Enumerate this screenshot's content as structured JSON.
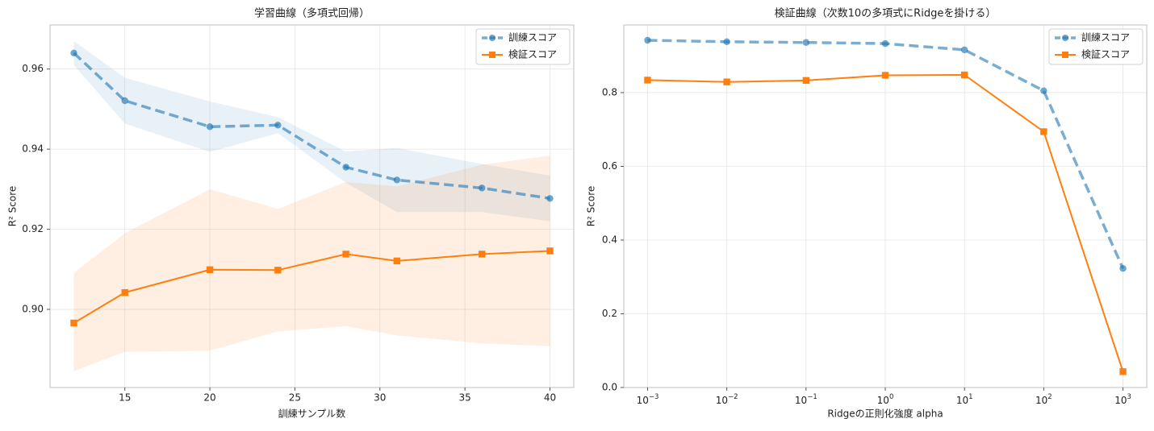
{
  "chart_data": [
    {
      "type": "line",
      "title": "学習曲線（多項式回帰）",
      "xlabel": "訓練サンプル数",
      "ylabel": "R² Score",
      "xlim": [
        10.6,
        41.4
      ],
      "ylim": [
        0.8805,
        0.971
      ],
      "xticks": [
        15,
        20,
        25,
        30,
        35,
        40
      ],
      "xtick_labels": [
        "15",
        "20",
        "25",
        "30",
        "35",
        "40"
      ],
      "yticks": [
        0.9,
        0.92,
        0.94,
        0.96
      ],
      "ytick_labels": [
        "0.90",
        "0.92",
        "0.94",
        "0.96"
      ],
      "grid": true,
      "legend_position": "top-right",
      "x": [
        12,
        15,
        20,
        24,
        28,
        31,
        36,
        40
      ],
      "series": [
        {
          "name": "訓練スコア",
          "color": "#1f77b4",
          "marker": "circle",
          "linestyle": "dashed",
          "values": [
            0.964,
            0.9521,
            0.9456,
            0.946,
            0.9355,
            0.9323,
            0.9303,
            0.9277
          ],
          "band_lower": [
            0.961,
            0.9464,
            0.9393,
            0.944,
            0.9316,
            0.9243,
            0.9243,
            0.922
          ],
          "band_upper": [
            0.967,
            0.9578,
            0.9519,
            0.948,
            0.9394,
            0.9403,
            0.9363,
            0.9334
          ]
        },
        {
          "name": "検証スコア",
          "color": "#ff7f0e",
          "marker": "square",
          "linestyle": "solid",
          "values": [
            0.8966,
            0.9042,
            0.9099,
            0.9098,
            0.9138,
            0.9121,
            0.9138,
            0.9146
          ],
          "band_lower": [
            0.8846,
            0.8894,
            0.8897,
            0.8945,
            0.8958,
            0.8935,
            0.8915,
            0.8908
          ],
          "band_upper": [
            0.9091,
            0.919,
            0.93,
            0.9251,
            0.9318,
            0.9307,
            0.9361,
            0.9384
          ]
        }
      ]
    },
    {
      "type": "line",
      "title": "検証曲線（次数10の多項式にRidgeを掛ける）",
      "xlabel": "Ridgeの正則化強度 alpha",
      "ylabel": "R² Score",
      "xscale": "log",
      "xlim": [
        0.000501,
        1995
      ],
      "ylim": [
        0,
        0.9835
      ],
      "xticks": [
        0.001,
        0.01,
        0.1,
        1,
        10,
        100,
        1000
      ],
      "xtick_labels": [
        {
          "base": "10",
          "exp": "−3"
        },
        {
          "base": "10",
          "exp": "−2"
        },
        {
          "base": "10",
          "exp": "−1"
        },
        {
          "base": "10",
          "exp": "0"
        },
        {
          "base": "10",
          "exp": "1"
        },
        {
          "base": "10",
          "exp": "2"
        },
        {
          "base": "10",
          "exp": "3"
        }
      ],
      "yticks": [
        0.0,
        0.2,
        0.4,
        0.6,
        0.8
      ],
      "ytick_labels": [
        "0.0",
        "0.2",
        "0.4",
        "0.6",
        "0.8"
      ],
      "grid": true,
      "legend_position": "top-right",
      "x": [
        0.001,
        0.01,
        0.1,
        1,
        10,
        100,
        1000
      ],
      "series": [
        {
          "name": "訓練スコア",
          "color": "#1f77b4",
          "marker": "circle",
          "linestyle": "dashed",
          "values": [
            0.942,
            0.938,
            0.936,
            0.933,
            0.916,
            0.805,
            0.323
          ]
        },
        {
          "name": "検証スコア",
          "color": "#ff7f0e",
          "marker": "square",
          "linestyle": "solid",
          "values": [
            0.834,
            0.829,
            0.833,
            0.847,
            0.848,
            0.694,
            0.043
          ]
        }
      ]
    }
  ]
}
